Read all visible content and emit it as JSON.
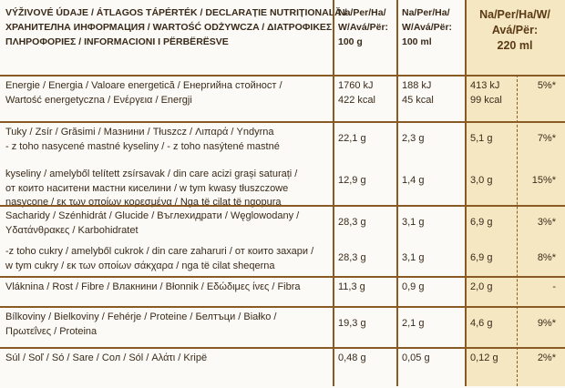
{
  "header": {
    "label_lines": [
      "VÝŽIVOVÉ ÚDAJE / ÁTLAGOS TÁPÉRTÉK / DECLARAȚIE NUTRIȚIONALĂ /",
      "ХРАНИТЕЛНА ИНФОРМАЦИЯ / WARTOŚĆ ODŻYWCZA / ΔΙΑΤΡΟΦΙΚΕΣ",
      "ΠΛΗΡΟΦΟΡΙΕΣ / INFORMACIONI I PËRBËRËSVE"
    ],
    "per_100g": [
      "Na/Per/Ha/",
      "W/Avá/Për:",
      "100 g"
    ],
    "per_100ml": [
      "Na/Per/Ha/",
      "W/Avá/Për:",
      "100 ml"
    ],
    "per_220ml": [
      "Na/Per/Ha/W/",
      "Avá/Për:",
      "220 ml"
    ]
  },
  "sections": [
    {
      "items": [
        {
          "label": [
            "Energie / Energia / Valoare energetică / Енергийна стойност /",
            "Wartość energetyczna / Ενέργεια / Energji"
          ],
          "per_100g": [
            "1760 kJ",
            "422 kcal"
          ],
          "per_100ml": [
            "188 kJ",
            "45 kcal"
          ],
          "per_220ml": [
            "413 kJ",
            "99 kcal"
          ],
          "ri": "5%*"
        }
      ]
    },
    {
      "items": [
        {
          "label": [
            "Tuky / Zsír / Grăsimi / Мазнини / Tłuszcz / Λιπαρά / Yndyrna",
            "- z toho nasycené mastné kyseliny / - z toho nasýtené mastné"
          ],
          "per_100g": [
            "22,1 g"
          ],
          "per_100ml": [
            "2,3 g"
          ],
          "per_220ml": [
            "5,1 g"
          ],
          "ri": "7%*"
        },
        {
          "label": [
            "kyseliny / amelyből telített zsírsavak / din care acizi grași saturați /",
            "от които наситени мастни киселини / w tym kwasy tłuszczowe",
            "nasycone / εκ των οποίων κορεσμένα / Nga të cilat të ngopura"
          ],
          "per_100g": [
            "12,9 g"
          ],
          "per_100ml": [
            "1,4 g"
          ],
          "per_220ml": [
            "3,0 g"
          ],
          "ri": "15%*"
        }
      ]
    },
    {
      "items": [
        {
          "label": [
            "Sacharidy / Szénhidrát / Glucide / Въглехидрати / Węglowodany /",
            "Υδατάνθρακες / Karbohidratet"
          ],
          "per_100g": [
            "28,3 g"
          ],
          "per_100ml": [
            "3,1 g"
          ],
          "per_220ml": [
            "6,9 g"
          ],
          "ri": "3%*"
        },
        {
          "label": [
            "-z toho cukry / amelyből cukrok / din care zaharuri / от които захари /",
            "w tym cukry / εκ των οποίων σάκχαρα / nga të cilat sheqerna"
          ],
          "per_100g": [
            "28,3 g"
          ],
          "per_100ml": [
            "3,1 g"
          ],
          "per_220ml": [
            "6,9 g"
          ],
          "ri": "8%*"
        }
      ]
    },
    {
      "items": [
        {
          "label": [
            "Vláknina / Rost / Fibre / Влакнини / Błonnik / Εδώδιμες ίνες / Fibra"
          ],
          "per_100g": [
            "11,3 g"
          ],
          "per_100ml": [
            "0,9 g"
          ],
          "per_220ml": [
            "2,0 g"
          ],
          "ri": "-"
        }
      ]
    },
    {
      "items": [
        {
          "label": [
            "Bílkoviny / Bielkoviny / Fehérje / Proteine / Белтъци / Białko /",
            "Πρωτεΐνες / Proteina"
          ],
          "per_100g": [
            "19,3 g"
          ],
          "per_100ml": [
            "2,1 g"
          ],
          "per_220ml": [
            "4,6 g"
          ],
          "ri": "9%*"
        }
      ]
    },
    {
      "items": [
        {
          "label": [
            "Súl / Soľ / Só / Sare / Сол / Sól / Αλάτι / Kripë"
          ],
          "per_100g": [
            "0,48 g"
          ],
          "per_100ml": [
            "0,05 g"
          ],
          "per_220ml": [
            "0,12 g"
          ],
          "ri": "2%*"
        }
      ]
    }
  ]
}
